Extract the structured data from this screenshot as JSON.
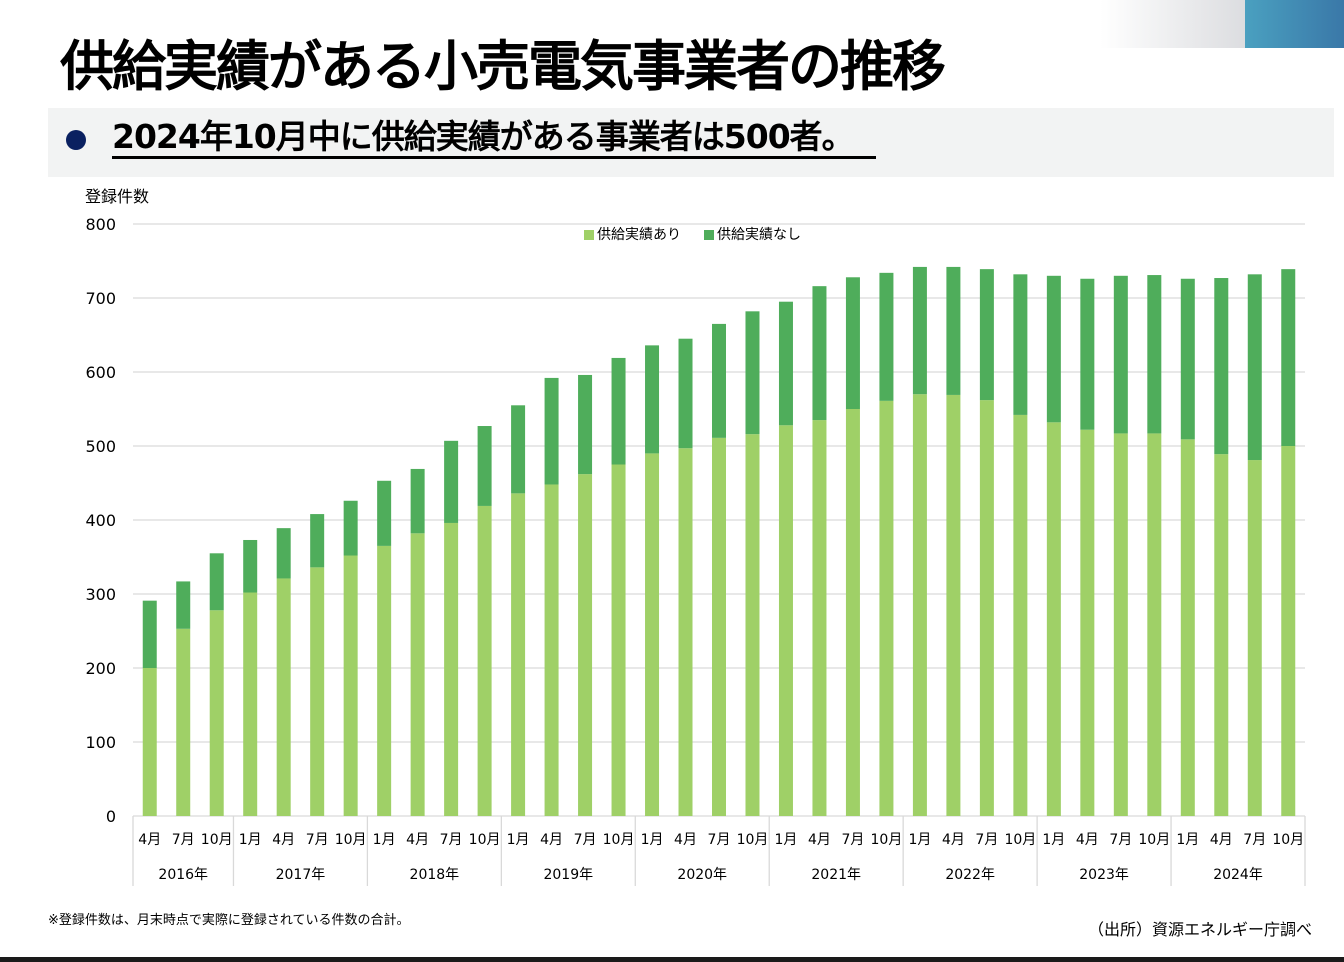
{
  "header": {
    "title": "供給実績がある小売電気事業者の推移"
  },
  "highlight": {
    "text": "2024年10月中に供給実績がある事業者は500者。"
  },
  "footer": {
    "note": "※登録件数は、月末時点で実際に登録されている件数の合計。",
    "source": "（出所）資源エネルギー庁調べ"
  },
  "chart_data": {
    "type": "bar",
    "stacked": true,
    "ylabel": "登録件数",
    "ylim": [
      0,
      800
    ],
    "yticks": [
      0,
      100,
      200,
      300,
      400,
      500,
      600,
      700,
      800
    ],
    "grid": true,
    "legend_position": "top-center",
    "colors": {
      "with_supply": "#9fd067",
      "without_supply": "#4fad5b"
    },
    "year_groups": [
      {
        "label": "2016年",
        "count": 3
      },
      {
        "label": "2017年",
        "count": 4
      },
      {
        "label": "2018年",
        "count": 4
      },
      {
        "label": "2019年",
        "count": 4
      },
      {
        "label": "2020年",
        "count": 4
      },
      {
        "label": "2021年",
        "count": 4
      },
      {
        "label": "2022年",
        "count": 4
      },
      {
        "label": "2023年",
        "count": 4
      },
      {
        "label": "2024年",
        "count": 4
      }
    ],
    "categories": [
      "4月",
      "7月",
      "10月",
      "1月",
      "4月",
      "7月",
      "10月",
      "1月",
      "4月",
      "7月",
      "10月",
      "1月",
      "4月",
      "7月",
      "10月",
      "1月",
      "4月",
      "7月",
      "10月",
      "1月",
      "4月",
      "7月",
      "10月",
      "1月",
      "4月",
      "7月",
      "10月",
      "1月",
      "4月",
      "7月",
      "10月",
      "1月",
      "4月",
      "7月",
      "10月"
    ],
    "series": [
      {
        "name": "供給実績あり",
        "values": [
          200,
          253,
          278,
          302,
          321,
          336,
          352,
          365,
          382,
          396,
          419,
          436,
          448,
          462,
          475,
          490,
          497,
          511,
          516,
          528,
          535,
          550,
          561,
          570,
          569,
          562,
          542,
          532,
          522,
          517,
          517,
          509,
          489,
          481,
          500
        ]
      },
      {
        "name": "供給実績なし",
        "values": [
          91,
          64,
          77,
          71,
          68,
          72,
          74,
          88,
          87,
          111,
          108,
          119,
          144,
          134,
          144,
          146,
          148,
          154,
          166,
          167,
          181,
          178,
          173,
          172,
          173,
          177,
          190,
          198,
          204,
          213,
          214,
          217,
          238,
          251,
          239
        ]
      }
    ]
  }
}
